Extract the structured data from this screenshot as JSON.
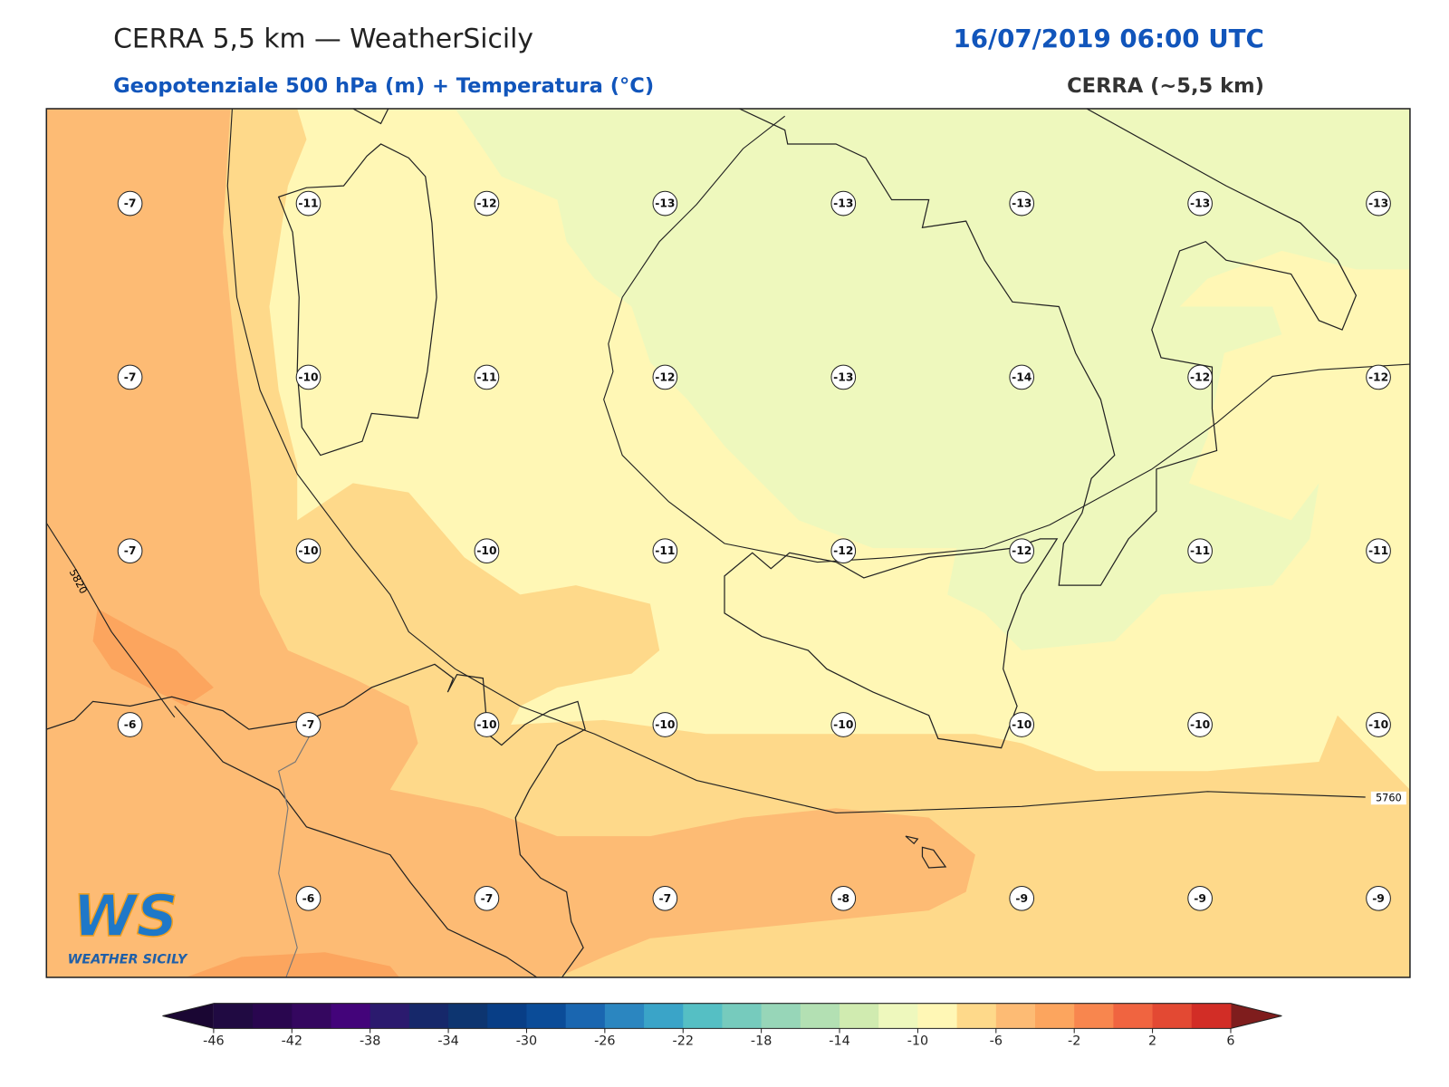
{
  "header": {
    "title": "CERRA 5,5 km — WeatherSicily",
    "datetime": "16/07/2019 06:00 UTC",
    "subtitle": "Geopotenziale 500 hPa (m) + Temperatura (°C)",
    "model": "CERRA (~5,5 km)"
  },
  "map": {
    "temperature_grid": {
      "rows": [
        [
          -7,
          -11,
          -12,
          -13,
          -13,
          -13,
          -13,
          -13
        ],
        [
          -7,
          -10,
          -11,
          -12,
          -13,
          -14,
          -12,
          -12
        ],
        [
          -7,
          -10,
          -10,
          -11,
          -12,
          -12,
          -11,
          -11
        ],
        [
          -6,
          -7,
          -10,
          -10,
          -10,
          -10,
          -10,
          -10
        ],
        [
          null,
          -6,
          -7,
          -7,
          -8,
          -9,
          -9,
          -9
        ]
      ]
    },
    "isohypse_labels": [
      "5820",
      "5760"
    ]
  },
  "colorbar": {
    "levels": [
      -46,
      -44,
      -42,
      -40,
      -38,
      -36,
      -34,
      -32,
      -30,
      -28,
      -26,
      -24,
      -22,
      -20,
      -18,
      -16,
      -14,
      -12,
      -10,
      -8,
      -6,
      -4,
      -2,
      0,
      2,
      4,
      6
    ],
    "colors": [
      "#200a42",
      "#29064f",
      "#34075f",
      "#43047a",
      "#2b1a6e",
      "#16286a",
      "#0d3570",
      "#083e86",
      "#0b4c98",
      "#1a66b0",
      "#2b86c0",
      "#3aa4c8",
      "#55bfc4",
      "#76cbbd",
      "#97d6b8",
      "#b3e0b3",
      "#d0ebb0",
      "#eef8bd",
      "#fff7b5",
      "#fed98a",
      "#fdbb74",
      "#fca55e",
      "#f8864e",
      "#f06440",
      "#e34933",
      "#d22d26"
    ],
    "extend_colors": [
      "#1a0633",
      "#7f1d1d"
    ],
    "ticks": [
      -46,
      -42,
      -38,
      -34,
      -30,
      -26,
      -22,
      -18,
      -14,
      -10,
      -6,
      -2,
      2,
      6
    ]
  },
  "logo": {
    "mark": "WS",
    "text": "WEATHER SICILY"
  }
}
